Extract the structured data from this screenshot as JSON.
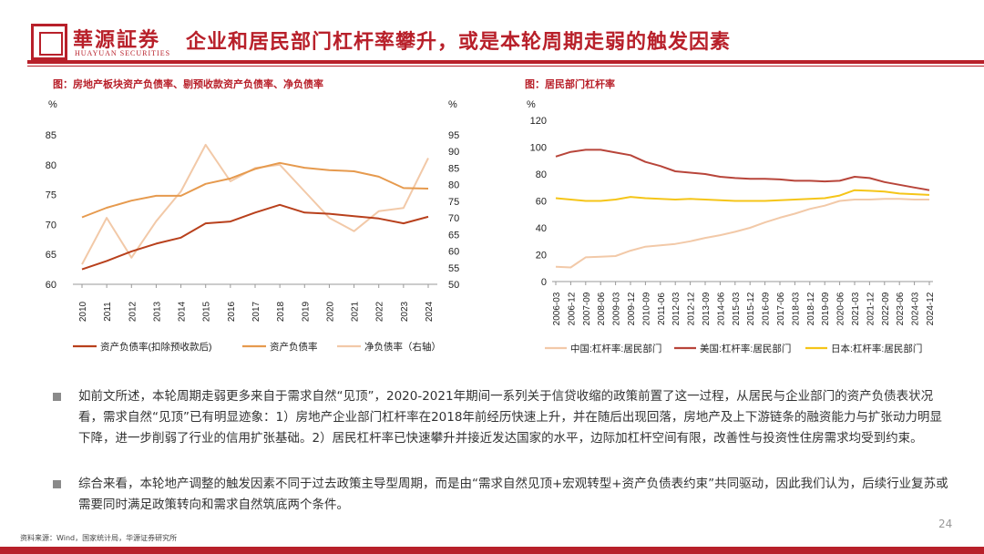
{
  "header": {
    "brand_cn": "華源証券",
    "brand_en": "HUAYUAN SECURITIES",
    "title": "企业和居民部门杠杆率攀升，或是本轮周期走弱的触发因素",
    "accent": "#b8202a"
  },
  "left_chart": {
    "caption": "图：房地产板块资产负债率、剔预收款资产负债率、净负债率",
    "left_unit": "%",
    "right_unit": "%",
    "left_ticks": [
      "85",
      "80",
      "75",
      "70",
      "65",
      "60"
    ],
    "right_ticks": [
      "95",
      "90",
      "85",
      "80",
      "75",
      "70",
      "65",
      "60",
      "55",
      "50"
    ],
    "legend": [
      "资产负债率(扣除预收款后)",
      "资产负债率",
      "净负债率（右轴）"
    ]
  },
  "right_chart": {
    "caption": "图：居民部门杠杆率",
    "unit": "%",
    "y_ticks": [
      "120",
      "100",
      "80",
      "60",
      "40",
      "20",
      "0"
    ],
    "legend": [
      "中国:杠杆率:居民部门",
      "美国:杠杆率:居民部门",
      "日本:杠杆率:居民部门"
    ]
  },
  "chart_data": [
    {
      "type": "line",
      "title": "图：房地产板块资产负债率、剔预收款资产负债率、净负债率",
      "x": [
        "2010",
        "2011",
        "2012",
        "2013",
        "2014",
        "2015",
        "2016",
        "2017",
        "2018",
        "2019",
        "2020",
        "2021",
        "2022",
        "2023",
        "2024"
      ],
      "ylim": [
        60,
        85
      ],
      "y2lim": [
        50,
        95
      ],
      "series": [
        {
          "name": "资产负债率(扣除预收款后)",
          "axis": "left",
          "color": "#b8401c",
          "values": [
            62.5,
            63.9,
            65.5,
            66.8,
            67.8,
            70.2,
            70.5,
            72.0,
            73.3,
            72.0,
            71.8,
            71.4,
            71.0,
            70.2,
            71.3
          ]
        },
        {
          "name": "资产负债率",
          "axis": "left",
          "color": "#e69a4e",
          "values": [
            71.2,
            72.8,
            74.0,
            74.8,
            74.8,
            76.8,
            77.7,
            79.3,
            80.3,
            79.5,
            79.1,
            78.9,
            78.0,
            76.1,
            76.0
          ]
        },
        {
          "name": "净负债率（右轴）",
          "axis": "right",
          "color": "#f2c9a8",
          "values": [
            56.0,
            70.0,
            58.0,
            69.0,
            78.0,
            92.0,
            81.0,
            85.0,
            86.0,
            78.0,
            70.0,
            66.0,
            72.0,
            73.0,
            88.0
          ]
        }
      ]
    },
    {
      "type": "line",
      "title": "图：居民部门杠杆率",
      "x": [
        "2006-03",
        "2006-12",
        "2007-09",
        "2008-06",
        "2009-03",
        "2009-12",
        "2010-09",
        "2011-06",
        "2012-03",
        "2012-12",
        "2013-09",
        "2014-06",
        "2015-03",
        "2015-12",
        "2016-09",
        "2017-06",
        "2018-03",
        "2018-12",
        "2019-09",
        "2020-06",
        "2021-03",
        "2021-12",
        "2022-09",
        "2023-06",
        "2024-03",
        "2024-12"
      ],
      "ylim": [
        0,
        120
      ],
      "series": [
        {
          "name": "中国:杠杆率:居民部门",
          "color": "#f2c9a8",
          "values": [
            11,
            10.5,
            18,
            18.5,
            19,
            23,
            26,
            27,
            28,
            30,
            32.5,
            34.5,
            37,
            40,
            44,
            47.5,
            50.5,
            54,
            56.5,
            60,
            61,
            61,
            61.5,
            61.5,
            61,
            61
          ]
        },
        {
          "name": "美国:杠杆率:居民部门",
          "color": "#b8453a",
          "values": [
            93,
            96.5,
            98,
            98,
            96,
            94,
            89,
            86,
            82,
            81,
            80,
            78,
            77,
            76.5,
            76.5,
            76,
            75,
            75,
            74.5,
            75,
            78,
            77,
            74,
            72,
            70,
            68
          ]
        },
        {
          "name": "日本:杠杆率:居民部门",
          "color": "#f5c518",
          "values": [
            62,
            61,
            60,
            60,
            61,
            63,
            62,
            61.5,
            61,
            61.5,
            61,
            60.5,
            60,
            60,
            60,
            60.5,
            61,
            61.5,
            62,
            64,
            68,
            67.5,
            67,
            65.5,
            65,
            64.5
          ]
        }
      ]
    }
  ],
  "paragraphs": [
    "如前文所述，本轮周期走弱更多来自于需求自然“见顶”，2020-2021年期间一系列关于信贷收缩的政策前置了这一过程，从居民与企业部门的资产负债表状况看，需求自然“见顶”已有明显迹象：1）房地产企业部门杠杆率在2018年前经历快速上升，并在随后出现回落，房地产及上下游链条的融资能力与扩张动力明显下降，进一步削弱了行业的信用扩张基础。2）居民杠杆率已快速攀升并接近发达国家的水平，边际加杠杆空间有限，改善性与投资性住房需求均受到约束。",
    "综合来看，本轮地产调整的触发因素不同于过去政策主导型周期，而是由“需求自然见顶+宏观转型+资产负债表约束”共同驱动，因此我们认为，后续行业复苏或需要同时满足政策转向和需求自然筑底两个条件。"
  ],
  "footer": {
    "source": "资料来源：Wind，国家统计局，华源证券研究所",
    "page": "24"
  }
}
